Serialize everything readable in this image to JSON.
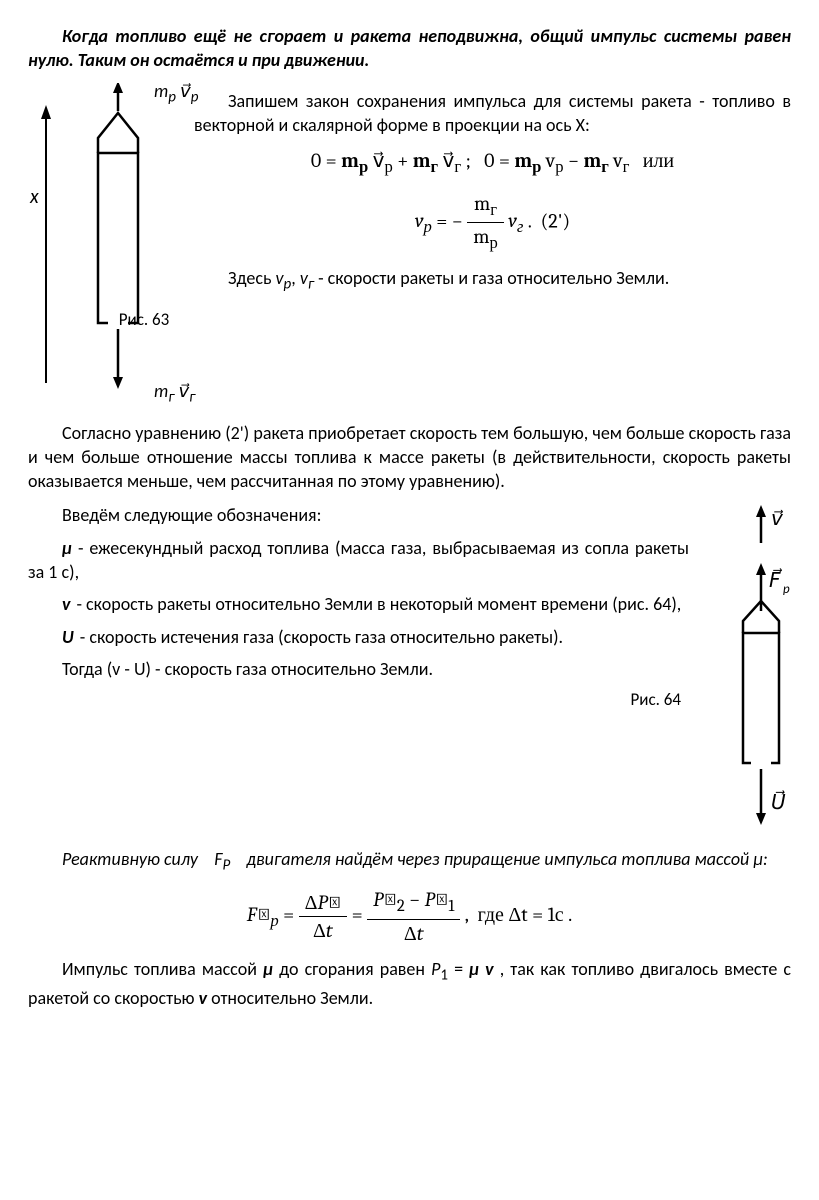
{
  "p_intro": "Когда топливо ещё не сгорает и ракета неподвижна, общий импульс системы равен нулю. Таким он остаётся и при движении.",
  "fig63": {
    "x_label": "x",
    "top_label_html": "m<sub>р</sub> v⃗<sub>р</sub>",
    "bot_label_html": "m<sub>г</sub> v⃗<sub>г</sub>",
    "caption": "Рис. 63"
  },
  "p_b1": "Запишем закон сохранения импульса для системы ракета - топливо в векторной и скалярной форме в проекции на ось X:",
  "eq1_html": "0 = <b>m<sub>р</sub></b> v⃗<sub>р</sub> + <b>m<sub>г</sub></b> v⃗<sub>г</sub> ;&nbsp;&nbsp; 0 = <b>m<sub>р</sub></b> v<sub>р</sub> − <b>m<sub>г</sub></b> v<sub>г</sub> &nbsp; или",
  "eq2_label": "(2')",
  "eq2_frac_num": "m<sub>г</sub>",
  "eq2_frac_den": "m<sub>р</sub>",
  "p_b2_html": "Здесь <i>v<sub>р</sub></i>, <i>v<sub>г</sub></i> - скорости ракеты и газа относительно Земли.",
  "p_c1": "Согласно уравнению (2') ракета приобретает скорость тем большую, чем больше скорость газа и чем больше отношение массы топлива к массе ракеты (в действительности, скорость ракеты оказывается меньше, чем рассчитанная по этому уравнению).",
  "p_c2": "Введём следующие обозначения:",
  "defs": {
    "mu": "μ - ежесекундный расход топлива (масса газа, выбрасываемая из сопла ракеты за 1 с),",
    "v": "v - скорость ракеты относительно Земли в некоторый момент времени (рис. 64),",
    "U": "U - скорость истечения газа (скорость газа относительно ракеты).",
    "vU": "Тогда  (v - U) - скорость газа относительно Земли."
  },
  "fig64": {
    "top_v": "v⃗",
    "mid_F": "F⃗<sub>р</sub>",
    "bot_U": "U⃗",
    "caption": "Рис. 64"
  },
  "p_d1_html": "<i>Реактивную силу &nbsp;&nbsp; F<sub>P</sub> &nbsp;&nbsp; двигателя найдём через приращение импульса топлива массой μ:</i>",
  "eq3_tail": ",&nbsp; где Δt = 1с .",
  "p_e1_html": "Импульс топлива массой <b><i>μ</i></b> до сгорания равен <i>P</i><sub>1</sub> = <b><i>μ v</i></b> , так как топливо двигалось вместе с ракетой со скоростью <b><i>v</i></b> относительно Земли.",
  "style": {
    "text_color": "#000000",
    "bg": "#ffffff",
    "line_w": 2,
    "font_size_pt": 13
  }
}
